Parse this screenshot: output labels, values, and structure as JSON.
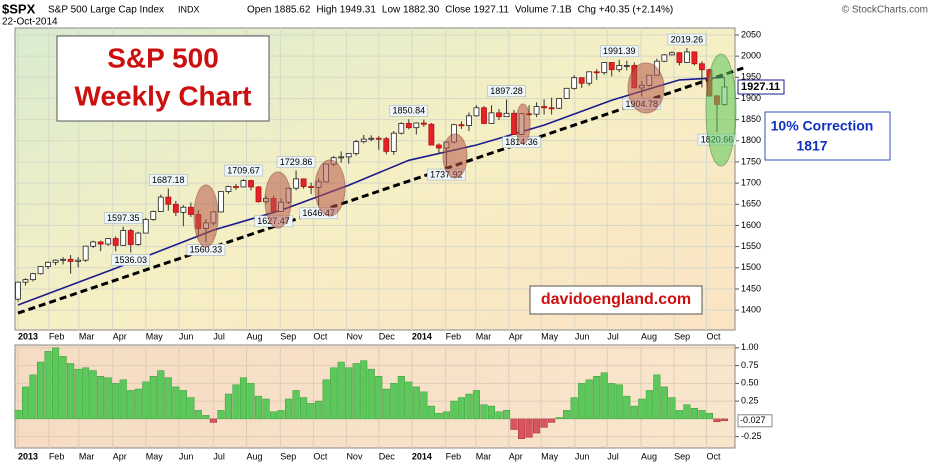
{
  "header": {
    "symbol": "$SPX",
    "name": "S&P 500 Large Cap Index",
    "exchange": "INDX",
    "date": "22-Oct-2014",
    "stats": [
      "Open 1885.62",
      "High 1949.31",
      "Low 1882.30",
      "Close 1927.11",
      "Volume 7.1B",
      "Chg +40.35 (+2.14%)"
    ],
    "credit": "© StockCharts.com"
  },
  "chart_data": [
    {
      "type": "candlestick",
      "title": "S&P 500",
      "subtitle": "Weekly Chart",
      "watermark": "davidoengland.com",
      "annotation": "10% Correction",
      "annotation_value": 1817,
      "up_color": "#ffffff",
      "down_color": "#e8202a",
      "wick_color": "#333333",
      "open": [
        1426,
        1466,
        1472,
        1486,
        1503,
        1513,
        1518,
        1520,
        1515,
        1518,
        1551,
        1561,
        1556,
        1569,
        1553,
        1588,
        1555,
        1582,
        1614,
        1633,
        1667,
        1650,
        1631,
        1643,
        1626,
        1593,
        1606,
        1632,
        1680,
        1692,
        1691,
        1706,
        1691,
        1656,
        1664,
        1633,
        1655,
        1688,
        1710,
        1692,
        1690,
        1703,
        1745,
        1760,
        1762,
        1770,
        1798,
        1804,
        1806,
        1805,
        1775,
        1818,
        1841,
        1831,
        1842,
        1839,
        1790,
        1783,
        1797,
        1838,
        1836,
        1859,
        1878,
        1841,
        1866,
        1857,
        1865,
        1815,
        1864,
        1863,
        1881,
        1878,
        1877,
        1900,
        1924,
        1949,
        1936,
        1963,
        1961,
        1985,
        1968,
        1978,
        1978,
        1925,
        1931,
        1955,
        1988,
        2003,
        2008,
        1985,
        2010,
        1982,
        1968,
        1906,
        1885.62
      ],
      "high": [
        1467,
        1475,
        1488,
        1504,
        1515,
        1520,
        1525,
        1530,
        1525,
        1552,
        1564,
        1564,
        1570,
        1574,
        1597.35,
        1592,
        1585,
        1618,
        1635,
        1673,
        1687.18,
        1658,
        1648,
        1654,
        1636,
        1615,
        1634,
        1680,
        1694,
        1698,
        1709.67,
        1708,
        1693,
        1670,
        1670,
        1664,
        1689,
        1729.86,
        1711,
        1701,
        1711,
        1745,
        1764,
        1775,
        1771,
        1802,
        1814,
        1813,
        1811,
        1809,
        1823,
        1844,
        1850.84,
        1843,
        1850,
        1842,
        1794,
        1798,
        1840,
        1846,
        1867,
        1884,
        1882,
        1884,
        1875,
        1897.28,
        1873,
        1865,
        1884,
        1891,
        1898,
        1902,
        1901,
        1924,
        1955,
        1950,
        1963,
        1969,
        1986,
        1985,
        1991.39,
        1989,
        1985,
        1941,
        1955,
        1994,
        2005,
        2011,
        2009,
        2019.26,
        2011,
        1988,
        1970,
        1909,
        1949.31
      ],
      "low": [
        1420,
        1458,
        1468,
        1484,
        1497,
        1506,
        1508,
        1486,
        1501,
        1514,
        1547,
        1539,
        1552,
        1539,
        1552,
        1536.03,
        1552,
        1581,
        1611,
        1632,
        1635,
        1622,
        1598,
        1620,
        1577,
        1560.33,
        1601,
        1631,
        1675,
        1684,
        1690,
        1683,
        1654,
        1652,
        1627.47,
        1633,
        1651,
        1683,
        1687,
        1674,
        1646.47,
        1702,
        1740,
        1748,
        1746,
        1765,
        1794,
        1799,
        1779,
        1768,
        1767,
        1815,
        1827,
        1815,
        1833,
        1790,
        1770,
        1737.92,
        1794,
        1828,
        1823,
        1857,
        1839,
        1840,
        1849,
        1857,
        1815,
        1814.36,
        1859,
        1856,
        1862,
        1862,
        1875,
        1899,
        1921,
        1925,
        1930,
        1944,
        1956,
        1952,
        1962,
        1966,
        1925,
        1904.78,
        1929,
        1954,
        1986,
        2002,
        1978,
        1984,
        1978,
        1926,
        1904,
        1820.66,
        1882.3
      ],
      "close": [
        1466,
        1472,
        1486,
        1503,
        1513,
        1518,
        1520,
        1515,
        1518,
        1551,
        1561,
        1556,
        1569,
        1553,
        1588,
        1555,
        1582,
        1614,
        1633,
        1667,
        1650,
        1631,
        1643,
        1626,
        1593,
        1606,
        1632,
        1680,
        1692,
        1691,
        1706,
        1691,
        1656,
        1664,
        1633,
        1655,
        1688,
        1710,
        1692,
        1690,
        1703,
        1745,
        1760,
        1762,
        1770,
        1798,
        1804,
        1806,
        1805,
        1775,
        1818,
        1841,
        1831,
        1842,
        1839,
        1790,
        1783,
        1797,
        1838,
        1836,
        1859,
        1878,
        1841,
        1866,
        1857,
        1865,
        1815,
        1864,
        1863,
        1881,
        1878,
        1877,
        1900,
        1924,
        1949,
        1936,
        1963,
        1961,
        1985,
        1968,
        1978,
        1978,
        1925,
        1931,
        1955,
        1988,
        2003,
        2008,
        1985,
        2010,
        1982,
        1968,
        1906,
        1886,
        1927.11
      ],
      "overlays": [
        {
          "color": "#1c1c8c",
          "x": [
            0,
            13,
            26,
            35,
            44,
            52,
            61,
            70,
            79,
            88,
            94
          ],
          "values": [
            1412,
            1499,
            1589,
            1636,
            1695,
            1754,
            1790,
            1837,
            1896,
            1944,
            1950
          ]
        },
        {
          "color": "#000000",
          "dashed": true,
          "x": [
            0,
            96.5
          ],
          "values": [
            1393,
            1972
          ]
        }
      ],
      "ylim": [
        1353,
        2066.5
      ],
      "yticks": [
        1400,
        1450,
        1500,
        1550,
        1600,
        1650,
        1700,
        1750,
        1800,
        1850,
        1900,
        1950,
        2000,
        2050
      ],
      "xlim": [
        -0.4,
        95.4
      ],
      "xticks": [
        {
          "value": 0,
          "label": "2013"
        },
        {
          "value": 4.1,
          "label": "Feb"
        },
        {
          "value": 8.1,
          "label": "Mar"
        },
        {
          "value": 12.6,
          "label": "Apr"
        },
        {
          "value": 17,
          "label": "May"
        },
        {
          "value": 21.4,
          "label": "Jun"
        },
        {
          "value": 26,
          "label": "Jul"
        },
        {
          "value": 30.4,
          "label": "Aug"
        },
        {
          "value": 34.9,
          "label": "Sep"
        },
        {
          "value": 39.3,
          "label": "Oct"
        },
        {
          "value": 43.7,
          "label": "Nov"
        },
        {
          "value": 48,
          "label": "Dec"
        },
        {
          "value": 52.4,
          "label": "2014"
        },
        {
          "value": 56.9,
          "label": "Feb"
        },
        {
          "value": 60.9,
          "label": "Mar"
        },
        {
          "value": 65.3,
          "label": "Apr"
        },
        {
          "value": 69.6,
          "label": "May"
        },
        {
          "value": 74.1,
          "label": "Jun"
        },
        {
          "value": 78.4,
          "label": "Jul"
        },
        {
          "value": 82.9,
          "label": "Aug"
        },
        {
          "value": 87.3,
          "label": "Sep"
        },
        {
          "value": 91.6,
          "label": "Oct"
        }
      ],
      "grid": true
    },
    {
      "type": "bar",
      "pos_color": "#5cc85c",
      "neg_color": "#d9545e",
      "values": [
        0.12,
        0.45,
        0.62,
        0.8,
        0.95,
        1.0,
        0.88,
        0.78,
        0.7,
        0.72,
        0.68,
        0.6,
        0.58,
        0.5,
        0.55,
        0.4,
        0.42,
        0.52,
        0.6,
        0.68,
        0.58,
        0.45,
        0.4,
        0.3,
        0.12,
        0.05,
        -0.05,
        0.12,
        0.35,
        0.48,
        0.58,
        0.5,
        0.32,
        0.28,
        0.1,
        0.12,
        0.28,
        0.4,
        0.3,
        0.22,
        0.25,
        0.55,
        0.72,
        0.8,
        0.72,
        0.78,
        0.82,
        0.7,
        0.6,
        0.42,
        0.5,
        0.6,
        0.52,
        0.45,
        0.38,
        0.18,
        0.08,
        0.1,
        0.25,
        0.3,
        0.35,
        0.4,
        0.2,
        0.18,
        0.1,
        0.12,
        -0.15,
        -0.28,
        -0.26,
        -0.2,
        -0.12,
        -0.05,
        0.02,
        0.12,
        0.3,
        0.5,
        0.55,
        0.6,
        0.65,
        0.5,
        0.48,
        0.32,
        0.18,
        0.28,
        0.4,
        0.62,
        0.45,
        0.3,
        0.12,
        0.2,
        0.15,
        0.12,
        0.08,
        -0.04,
        -0.027
      ],
      "ylim": [
        -0.41,
        1.04
      ],
      "yticks": [
        {
          "value": 1,
          "label": "1.00"
        },
        0.75,
        {
          "value": 0.5,
          "label": "0.50"
        },
        0.25,
        -0.25
      ],
      "grid": true
    }
  ]
}
